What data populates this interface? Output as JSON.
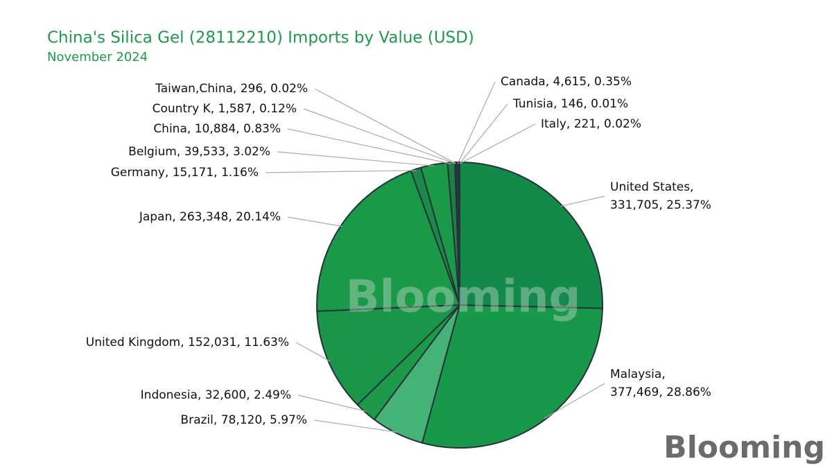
{
  "chart_data": {
    "type": "pie",
    "title": "China's Silica Gel (28112210) Imports by Value (USD)",
    "subtitle": "November 2024",
    "watermark": "Blooming",
    "categories": [
      "United States",
      "Malaysia",
      "Brazil",
      "Indonesia",
      "United Kingdom",
      "Japan",
      "Germany",
      "Belgium",
      "China",
      "Country K",
      "Taiwan,China",
      "Canada",
      "Tunisia",
      "Italy"
    ],
    "values": [
      331705,
      377469,
      78120,
      32600,
      152031,
      263348,
      15171,
      39533,
      10884,
      1587,
      296,
      4615,
      146,
      221
    ],
    "value_labels": [
      "331,705",
      "377,469",
      "78,120",
      "32,600",
      "152,031",
      "263,348",
      "15,171",
      "39,533",
      "10,884",
      "1,587",
      "296",
      "4,615",
      "146",
      "221"
    ],
    "percentages": [
      25.37,
      28.86,
      5.97,
      2.49,
      11.63,
      20.14,
      1.16,
      3.02,
      0.83,
      0.12,
      0.02,
      0.35,
      0.01,
      0.02
    ],
    "percentage_labels": [
      "25.37%",
      "28.86%",
      "5.97%",
      "2.49%",
      "11.63%",
      "20.14%",
      "1.16%",
      "3.02%",
      "0.83%",
      "0.12%",
      "0.02%",
      "0.35%",
      "0.01%",
      "0.02%"
    ],
    "colors": [
      "#138a4a",
      "#18994a",
      "#45b378",
      "#1c9a4a",
      "#1a9648",
      "#1a9a48",
      "#1b8a48",
      "#1a9a48",
      "#1b7f46",
      "#1e5a48",
      "#1d3d4a",
      "#1d3d4a",
      "#1d3d4a",
      "#1d3d4a"
    ]
  }
}
